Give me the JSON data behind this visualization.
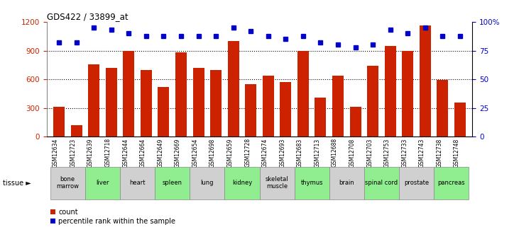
{
  "title": "GDS422 / 33899_at",
  "samples": [
    "GSM12634",
    "GSM12723",
    "GSM12639",
    "GSM12718",
    "GSM12644",
    "GSM12664",
    "GSM12649",
    "GSM12669",
    "GSM12654",
    "GSM12698",
    "GSM12659",
    "GSM12728",
    "GSM12674",
    "GSM12693",
    "GSM12683",
    "GSM12713",
    "GSM12688",
    "GSM12708",
    "GSM12703",
    "GSM12753",
    "GSM12733",
    "GSM12743",
    "GSM12738",
    "GSM12748"
  ],
  "counts": [
    310,
    120,
    760,
    720,
    900,
    700,
    520,
    880,
    720,
    700,
    1000,
    550,
    640,
    570,
    900,
    410,
    640,
    310,
    740,
    950,
    900,
    1160,
    590,
    360
  ],
  "percentiles": [
    82,
    82,
    95,
    93,
    90,
    88,
    88,
    88,
    88,
    88,
    95,
    92,
    88,
    85,
    88,
    82,
    80,
    78,
    80,
    93,
    90,
    95,
    88,
    88
  ],
  "tissues": [
    {
      "name": "bone\nmarrow",
      "start": 0,
      "end": 2,
      "color": "#d0d0d0"
    },
    {
      "name": "liver",
      "start": 2,
      "end": 4,
      "color": "#90ee90"
    },
    {
      "name": "heart",
      "start": 4,
      "end": 6,
      "color": "#d0d0d0"
    },
    {
      "name": "spleen",
      "start": 6,
      "end": 8,
      "color": "#90ee90"
    },
    {
      "name": "lung",
      "start": 8,
      "end": 10,
      "color": "#d0d0d0"
    },
    {
      "name": "kidney",
      "start": 10,
      "end": 12,
      "color": "#90ee90"
    },
    {
      "name": "skeletal\nmuscle",
      "start": 12,
      "end": 14,
      "color": "#d0d0d0"
    },
    {
      "name": "thymus",
      "start": 14,
      "end": 16,
      "color": "#90ee90"
    },
    {
      "name": "brain",
      "start": 16,
      "end": 18,
      "color": "#d0d0d0"
    },
    {
      "name": "spinal cord",
      "start": 18,
      "end": 20,
      "color": "#90ee90"
    },
    {
      "name": "prostate",
      "start": 20,
      "end": 22,
      "color": "#d0d0d0"
    },
    {
      "name": "pancreas",
      "start": 22,
      "end": 24,
      "color": "#90ee90"
    }
  ],
  "bar_color": "#cc2200",
  "dot_color": "#0000cc",
  "left_axis_color": "#cc2200",
  "right_axis_color": "#0000cc",
  "ylim_left": [
    0,
    1200
  ],
  "ylim_right": [
    0,
    100
  ],
  "yticks_left": [
    0,
    300,
    600,
    900,
    1200
  ],
  "yticks_right": [
    0,
    25,
    50,
    75,
    100
  ],
  "yticklabels_right": [
    "0",
    "25",
    "50",
    "75",
    "100%"
  ],
  "grid_values": [
    300,
    600,
    900
  ],
  "tissue_label": "tissue ►"
}
